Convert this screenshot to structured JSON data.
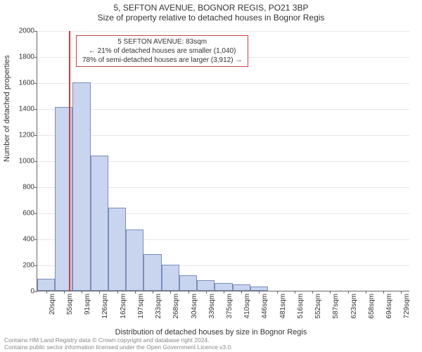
{
  "title": "5, SEFTON AVENUE, BOGNOR REGIS, PO21 3BP",
  "subtitle": "Size of property relative to detached houses in Bognor Regis",
  "ylabel": "Number of detached properties",
  "xlabel": "Distribution of detached houses by size in Bognor Regis",
  "chart": {
    "type": "histogram",
    "ylim": [
      0,
      2000
    ],
    "yticks": [
      0,
      200,
      400,
      600,
      800,
      1000,
      1200,
      1400,
      1600,
      1800,
      2000
    ],
    "xcategories": [
      "20sqm",
      "55sqm",
      "91sqm",
      "126sqm",
      "162sqm",
      "197sqm",
      "233sqm",
      "268sqm",
      "304sqm",
      "339sqm",
      "375sqm",
      "410sqm",
      "446sqm",
      "481sqm",
      "516sqm",
      "552sqm",
      "587sqm",
      "623sqm",
      "658sqm",
      "694sqm",
      "729sqm"
    ],
    "bars": [
      90,
      1410,
      1600,
      1040,
      640,
      470,
      280,
      200,
      120,
      80,
      60,
      50,
      35,
      0,
      0,
      0,
      0,
      0,
      0,
      0,
      0
    ],
    "bar_fill": "#c9d5ef",
    "bar_stroke": "#7a8db8",
    "grid_color": "#e8e8e8",
    "background": "#ffffff",
    "marker": {
      "index_after": 1,
      "value_sqm": 83,
      "color": "#d43b3b"
    }
  },
  "annotation": {
    "line1": "5 SEFTON AVENUE: 83sqm",
    "line2": "← 21% of detached houses are smaller (1,040)",
    "line3": "78% of semi-detached houses are larger (3,912) →",
    "border_color": "#cc4444"
  },
  "footer": {
    "line1": "Contains HM Land Registry data © Crown copyright and database right 2024.",
    "line2": "Contains public sector information licensed under the Open Government Licence v3.0."
  }
}
